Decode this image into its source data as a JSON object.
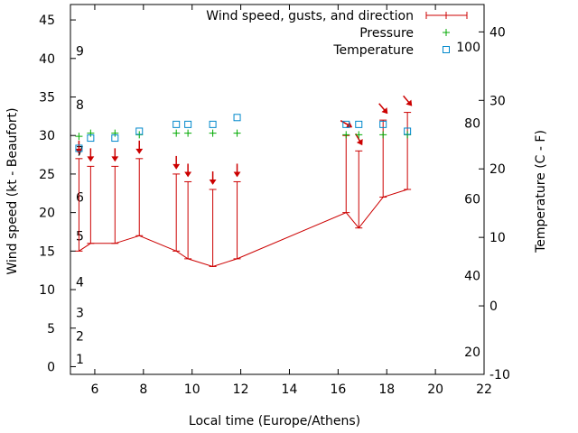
{
  "chart_data": {
    "type": "line",
    "xlabel": "Local time (Europe/Athens)",
    "ylabel_left": "Wind speed (kt - Beaufort)",
    "ylabel_right": "Temperature (C - F)",
    "xlim": [
      5,
      22
    ],
    "xticks": [
      6,
      8,
      10,
      12,
      14,
      16,
      18,
      20,
      22
    ],
    "ylim": [
      -1,
      47
    ],
    "yticks": [
      0,
      5,
      10,
      15,
      20,
      25,
      30,
      35,
      40,
      45
    ],
    "y2lim": [
      -10,
      44
    ],
    "y2ticks": [
      -10,
      0,
      10,
      20,
      30,
      40
    ],
    "beaufort_labels": [
      {
        "label": "1",
        "value": 1
      },
      {
        "label": "2",
        "value": 4
      },
      {
        "label": "3",
        "value": 7
      },
      {
        "label": "4",
        "value": 11
      },
      {
        "label": "5",
        "value": 17
      },
      {
        "label": "6",
        "value": 22
      },
      {
        "label": "7",
        "value": 28
      },
      {
        "label": "8",
        "value": 34
      },
      {
        "label": "9",
        "value": 41
      }
    ],
    "fahrenheit_labels": [
      {
        "label": "20",
        "value": -6.7
      },
      {
        "label": "40",
        "value": 4.4
      },
      {
        "label": "60",
        "value": 15.6
      },
      {
        "label": "80",
        "value": 26.7
      },
      {
        "label": "100",
        "value": 37.8
      }
    ],
    "series": [
      {
        "name": "Wind speed, gusts, and direction",
        "color": "#cc0000",
        "x": [
          5.35,
          5.83,
          6.83,
          7.83,
          9.35,
          9.83,
          10.85,
          11.85,
          16.33,
          16.85,
          17.85,
          18.85
        ],
        "values": [
          15,
          16,
          16,
          17,
          15,
          14,
          13,
          14,
          20,
          18,
          22,
          23
        ],
        "gusts": [
          27,
          26,
          26,
          27,
          25,
          24,
          23,
          24,
          30,
          28,
          32,
          33
        ],
        "direction_deg": [
          0,
          0,
          0,
          0,
          0,
          0,
          0,
          0,
          300,
          330,
          320,
          320
        ]
      },
      {
        "name": "Pressure",
        "color": "#00aa00",
        "x": [
          5.35,
          5.83,
          6.83,
          7.83,
          9.35,
          9.83,
          10.85,
          11.85,
          16.33,
          16.85,
          17.85,
          18.85
        ],
        "values": [
          29.9,
          30.3,
          30.3,
          30.1,
          30.3,
          30.3,
          30.3,
          30.3,
          30.1,
          30.1,
          30.1,
          30.1
        ]
      },
      {
        "name": "Temperature",
        "color": "#0088cc",
        "axis": "right",
        "x": [
          5.35,
          5.83,
          6.83,
          7.83,
          9.35,
          9.83,
          10.85,
          11.85,
          16.33,
          16.85,
          17.85,
          18.85
        ],
        "values": [
          23,
          24.5,
          24.5,
          25.5,
          26.5,
          26.5,
          26.5,
          27.5,
          26.5,
          26.5,
          26.5,
          25.5
        ]
      }
    ]
  }
}
